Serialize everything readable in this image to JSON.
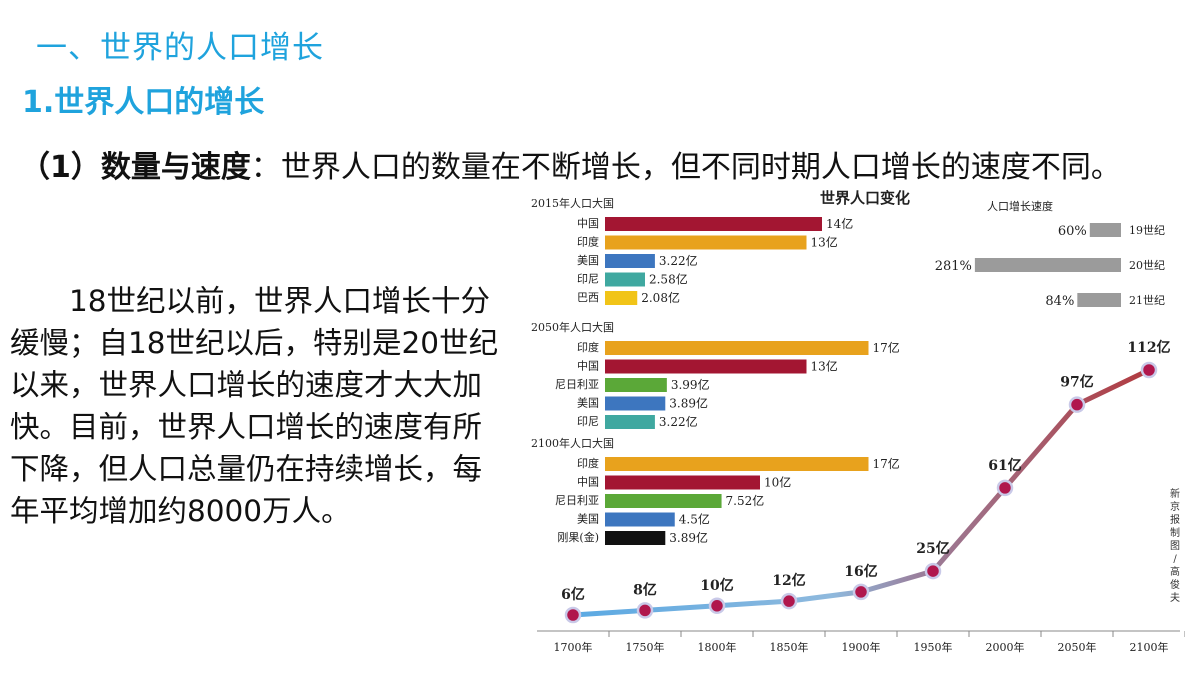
{
  "heading": {
    "section": "一、世界的人口增长",
    "sub": "1.世界人口的增长"
  },
  "intro": {
    "label": "（1）数量与速度",
    "sep": "：",
    "text": "世界人口的数量在不断增长，但不同时期人口增长的速度不同。"
  },
  "body_text": "18世纪以前，世界人口增长十分缓慢；自18世纪以后，特别是20世纪以来，世界人口增长的速度才大大加快。目前，世界人口增长的速度有所下降，但人口总量仍在持续增长，每年平均增加约8000万人。",
  "chart_data": [
    {
      "type": "bar",
      "title": "世界人口变化",
      "group_title": "2015年人口大国",
      "categories": [
        "中国",
        "印度",
        "美国",
        "印尼",
        "巴西"
      ],
      "values": [
        14,
        13,
        3.22,
        2.58,
        2.08
      ],
      "labels": [
        "14亿",
        "13亿",
        "3.22亿",
        "2.58亿",
        "2.08亿"
      ],
      "colors": [
        "#a31632",
        "#e8a21d",
        "#3d76bf",
        "#3fa8a0",
        "#f1c418"
      ]
    },
    {
      "type": "bar",
      "group_title": "2050年人口大国",
      "categories": [
        "印度",
        "中国",
        "尼日利亚",
        "美国",
        "印尼"
      ],
      "values": [
        17,
        13,
        3.99,
        3.89,
        3.22
      ],
      "labels": [
        "17亿",
        "13亿",
        "3.99亿",
        "3.89亿",
        "3.22亿"
      ],
      "colors": [
        "#e8a21d",
        "#a31632",
        "#5ba838",
        "#3d76bf",
        "#3fa8a0"
      ]
    },
    {
      "type": "bar",
      "group_title": "2100年人口大国",
      "categories": [
        "印度",
        "中国",
        "尼日利亚",
        "美国",
        "刚果(金)"
      ],
      "values": [
        17,
        10,
        7.52,
        4.5,
        3.89
      ],
      "labels": [
        "17亿",
        "10亿",
        "7.52亿",
        "4.5亿",
        "3.89亿"
      ],
      "colors": [
        "#e8a21d",
        "#a31632",
        "#5ba838",
        "#3d76bf",
        "#111111"
      ]
    },
    {
      "type": "bar",
      "group_title": "人口增长速度",
      "categories": [
        "19世纪",
        "20世纪",
        "21世纪"
      ],
      "values": [
        60,
        281,
        84
      ],
      "labels": [
        "60%",
        "281%",
        "84%"
      ],
      "color": "#9b9b9b"
    },
    {
      "type": "line",
      "x": [
        "1700年",
        "1750年",
        "1800年",
        "1850年",
        "1900年",
        "1950年",
        "2000年",
        "2050年",
        "2100年"
      ],
      "values": [
        6,
        8,
        10,
        12,
        16,
        25,
        61,
        97,
        112
      ],
      "labels": [
        "6亿",
        "8亿",
        "10亿",
        "12亿",
        "16亿",
        "25亿",
        "61亿",
        "97亿",
        "112亿"
      ]
    }
  ],
  "credit": "新京报制图/高俊夫"
}
